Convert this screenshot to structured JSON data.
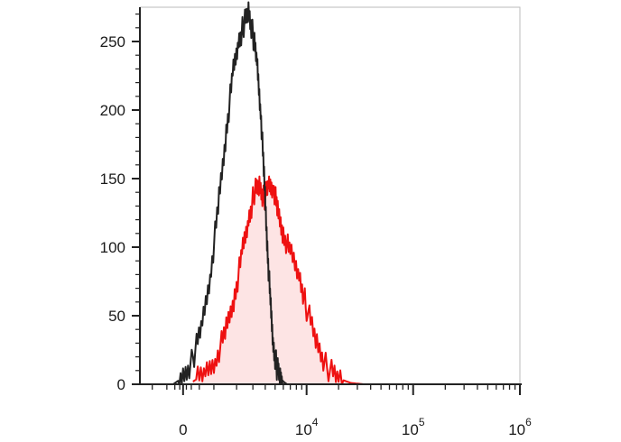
{
  "chart_data": {
    "type": "area",
    "title": "",
    "xlabel": "",
    "ylabel": "",
    "x_scale": "biexponential",
    "ylim": [
      0,
      275
    ],
    "y_ticks": [
      0,
      50,
      100,
      150,
      200,
      250
    ],
    "y_tick_labels": [
      "0",
      "50",
      "100",
      "150",
      "200",
      "250"
    ],
    "x_tick_labels": [
      {
        "value": 0,
        "base": "0",
        "exponent": ""
      },
      {
        "value": 10000,
        "base": "10",
        "exponent": "4"
      },
      {
        "value": 100000,
        "base": "10",
        "exponent": "5"
      },
      {
        "value": 1000000,
        "base": "10",
        "exponent": "6"
      }
    ],
    "grid": false,
    "legend": "none",
    "series": [
      {
        "color": "#222222",
        "fill": "none",
        "x": [
          -300,
          0,
          300,
          600,
          900,
          1200,
          1500,
          1800,
          2100,
          2400,
          2700,
          3000,
          3300,
          3600,
          3900,
          4200,
          4500,
          4800,
          5200,
          5600,
          6000,
          6500
        ],
        "values": [
          0,
          5,
          18,
          45,
          85,
          135,
          185,
          225,
          250,
          262,
          272,
          255,
          235,
          200,
          150,
          100,
          58,
          28,
          12,
          5,
          2,
          0
        ]
      },
      {
        "color": "#ee1111",
        "fill": "#fde4e4",
        "x": [
          300,
          700,
          1100,
          1500,
          1900,
          2300,
          2700,
          3100,
          3500,
          3900,
          4300,
          4800,
          5300,
          6000,
          7000,
          8500,
          10000,
          12500,
          15500,
          20000,
          26000,
          34000
        ],
        "values": [
          2,
          8,
          20,
          40,
          65,
          95,
          120,
          140,
          145,
          135,
          145,
          145,
          125,
          110,
          95,
          80,
          55,
          30,
          12,
          4,
          1,
          0
        ]
      }
    ]
  }
}
